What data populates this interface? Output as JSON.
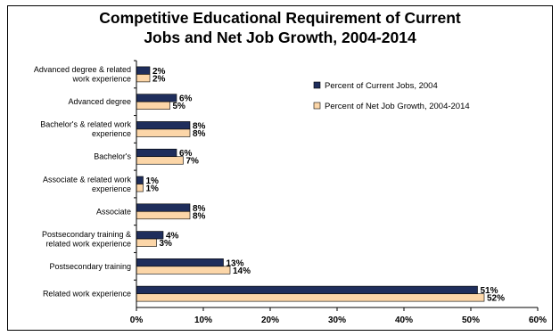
{
  "chart_data": {
    "type": "bar",
    "orientation": "horizontal",
    "title": "Competitive Educational Requirement of Current Jobs and Net Job Growth, 2004-2014",
    "title_lines": [
      "Competitive Educational Requirement of Current",
      "Jobs and Net Job Growth, 2004-2014"
    ],
    "categories": [
      [
        "Advanced degree & related",
        "work experience"
      ],
      [
        "Advanced degree"
      ],
      [
        "Bachelor's & related work",
        "experience"
      ],
      [
        "Bachelor's"
      ],
      [
        "Associate & related work",
        "experience"
      ],
      [
        "Associate"
      ],
      [
        "Postsecondary training &",
        "related work experience"
      ],
      [
        "Postsecondary training"
      ],
      [
        "Related work experience"
      ]
    ],
    "series": [
      {
        "name": "Percent of Current Jobs, 2004",
        "color": "#1f2e5c",
        "values": [
          2,
          6,
          8,
          6,
          1,
          8,
          4,
          13,
          51
        ],
        "labels": [
          "2%",
          "6%",
          "8%",
          "6%",
          "1%",
          "8%",
          "4%",
          "13%",
          "51%"
        ]
      },
      {
        "name": "Percent of Net Job Growth, 2004-2014",
        "color": "#fcd6a8",
        "values": [
          2,
          5,
          8,
          7,
          1,
          8,
          3,
          14,
          52
        ],
        "labels": [
          "2%",
          "5%",
          "8%",
          "7%",
          "1%",
          "8%",
          "3%",
          "14%",
          "52%"
        ]
      }
    ],
    "xlim": [
      0,
      60
    ],
    "xticks": [
      "0%",
      "10%",
      "20%",
      "30%",
      "40%",
      "50%",
      "60%"
    ],
    "grid": false,
    "legend_position": "right"
  }
}
